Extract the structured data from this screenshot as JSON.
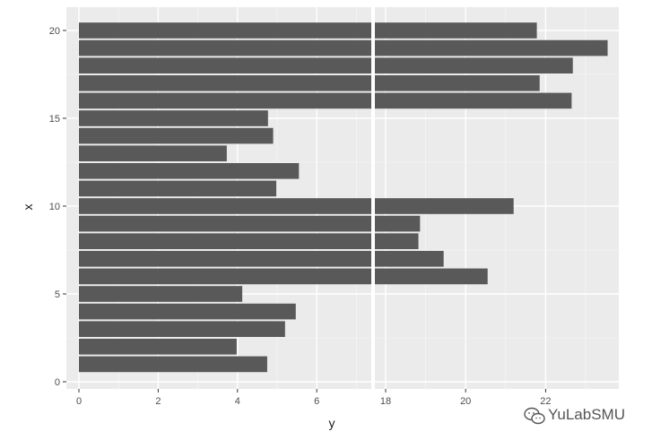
{
  "chart_data": {
    "type": "bar",
    "orientation": "horizontal",
    "axis_break": {
      "at_left": 7.5,
      "resume_at": 17.5
    },
    "xlabel": "y",
    "ylabel": "x",
    "x": [
      1,
      2,
      3,
      4,
      5,
      6,
      7,
      8,
      9,
      10,
      11,
      12,
      13,
      14,
      15,
      16,
      17,
      18,
      19,
      20
    ],
    "values": [
      4.75,
      3.98,
      5.2,
      5.47,
      4.12,
      20.55,
      19.45,
      18.82,
      18.86,
      21.2,
      4.98,
      5.55,
      3.73,
      4.9,
      4.77,
      22.65,
      21.85,
      22.68,
      23.55,
      21.78
    ],
    "xlim": [
      -0.3,
      23.9
    ],
    "ylim": [
      -0.5,
      21.2
    ],
    "left_panel_ticks": [
      "0",
      "2",
      "4",
      "6"
    ],
    "right_panel_ticks": [
      "18",
      "20",
      "22"
    ],
    "y_ticks": [
      "0",
      "5",
      "10",
      "15",
      "20"
    ],
    "grid": true,
    "bar_color": "#595959",
    "panel_background": "#ebebeb",
    "grid_color": "#ffffff",
    "legend": "none"
  },
  "watermark": {
    "text": "YuLabSMU",
    "icon": "wechat-icon"
  }
}
